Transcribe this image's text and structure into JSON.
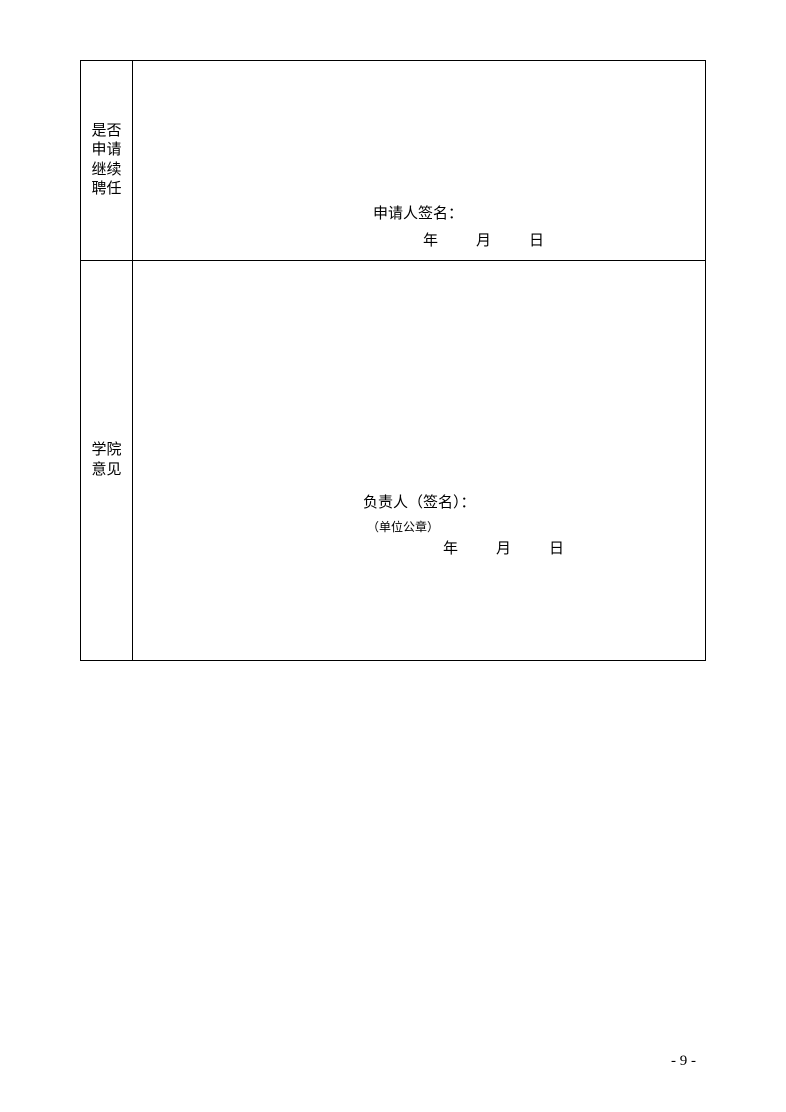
{
  "table": {
    "border_color": "#000000",
    "background_color": "#ffffff",
    "rows": [
      {
        "label": "是否申请继续聘任",
        "signature_label": "申请人签名：",
        "date_year": "年",
        "date_month": "月",
        "date_day": "日"
      },
      {
        "label": "学院意见",
        "signature_label": "负责人（签名）：",
        "seal_note": "（单位公章）",
        "date_year": "年",
        "date_month": "月",
        "date_day": "日"
      }
    ]
  },
  "page_number": "- 9 -",
  "typography": {
    "body_fontsize": 15,
    "small_fontsize": 12,
    "font_family": "SimSun",
    "text_color": "#000000"
  }
}
